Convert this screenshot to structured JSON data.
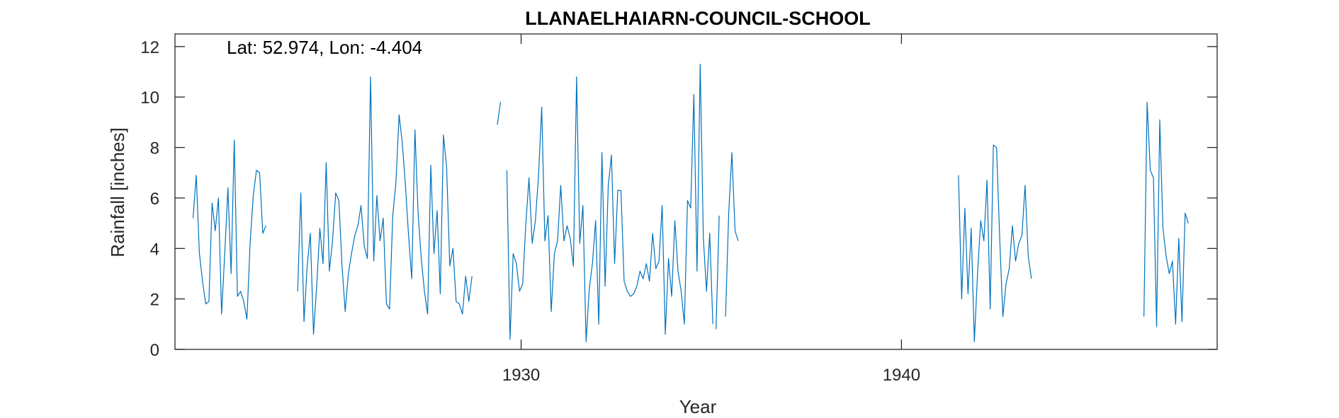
{
  "colors": {
    "series": "#0072BD",
    "axis": "#262626",
    "background": "#ffffff"
  },
  "chart_data": {
    "type": "line",
    "title": "LLANAELHAIARN-COUNCIL-SCHOOL",
    "annotation": "Lat: 52.974, Lon: -4.404",
    "xlabel": "Year",
    "ylabel": "Rainfall [inches]",
    "xlim": [
      1920.9,
      1948.3
    ],
    "ylim": [
      0,
      12.5
    ],
    "xticks": [
      1930,
      1940
    ],
    "yticks": [
      0,
      2,
      4,
      6,
      8,
      10,
      12
    ],
    "grid": false,
    "box": true,
    "series": [
      {
        "segments": [
          {
            "start": 1921.375,
            "values": [
              5.2,
              6.9,
              3.8,
              2.7,
              1.8,
              1.9,
              5.8,
              4.7,
              6.0,
              1.4,
              3.8,
              6.4,
              3.0,
              8.3,
              2.1,
              2.3,
              1.9,
              1.2,
              4.2,
              6.1,
              7.1,
              7.0,
              4.6,
              4.9
            ]
          },
          {
            "start": 1924.125,
            "values": [
              2.3,
              6.2,
              1.1,
              3.3,
              4.6,
              0.6,
              2.5,
              4.8,
              3.4,
              7.4,
              3.1,
              4.3,
              6.2,
              5.9,
              3.3,
              1.5,
              3.0,
              3.8,
              4.5,
              4.9,
              5.7,
              4.1,
              3.6,
              10.8,
              3.5,
              6.1,
              4.3,
              5.2,
              1.8,
              1.6,
              5.3,
              6.6,
              9.3,
              8.2,
              6.5,
              4.5,
              2.8,
              8.7,
              5.4,
              3.6,
              2.3,
              1.4,
              7.3,
              3.8,
              5.5,
              2.2,
              8.5,
              7.2,
              3.3,
              4.0,
              1.9,
              1.8,
              1.4,
              2.9,
              1.9,
              2.9
            ]
          },
          {
            "start": 1929.375,
            "values": [
              8.9,
              9.8
            ]
          },
          {
            "start": 1929.625,
            "values": [
              7.1,
              0.4,
              3.8,
              3.4,
              2.3,
              2.6,
              5.0,
              6.8,
              4.2,
              5.1,
              6.9,
              9.6,
              4.3,
              5.3,
              1.5,
              3.8,
              4.3,
              6.5,
              4.3,
              4.9,
              4.4,
              3.3,
              10.8,
              4.2,
              5.7,
              0.3,
              2.4,
              3.4,
              5.1,
              1.0,
              7.8,
              2.5,
              6.5,
              7.7,
              3.4,
              6.3,
              6.3,
              2.7,
              2.3,
              2.1,
              2.2,
              2.5,
              3.1,
              2.8,
              3.4,
              2.7,
              4.6,
              3.2,
              3.5,
              5.7,
              0.6,
              3.6,
              2.1,
              5.1,
              3.1,
              2.3,
              1.0,
              5.9,
              5.6,
              10.1,
              3.1,
              11.3,
              4.4,
              2.3,
              4.6,
              1.0
            ]
          },
          {
            "start": 1935.125,
            "values": [
              0.8,
              5.3
            ]
          },
          {
            "start": 1935.375,
            "values": [
              1.3,
              5.4,
              7.8,
              4.7,
              4.3
            ]
          },
          {
            "start": 1941.5,
            "values": [
              6.9,
              2.0,
              5.6,
              2.2,
              4.8,
              0.3,
              3.0,
              5.1,
              4.3,
              6.7,
              1.6,
              8.1,
              8.0,
              4.4,
              1.3,
              2.6,
              3.2,
              4.9,
              3.5,
              4.2,
              4.5,
              6.5,
              3.7,
              2.8
            ]
          },
          {
            "start": 1946.375,
            "values": [
              1.3,
              9.8,
              7.1,
              6.8,
              0.9,
              9.1,
              4.8,
              3.7,
              3.0,
              3.5,
              1.0,
              4.4,
              1.1,
              5.4,
              5.0
            ]
          }
        ]
      }
    ]
  }
}
